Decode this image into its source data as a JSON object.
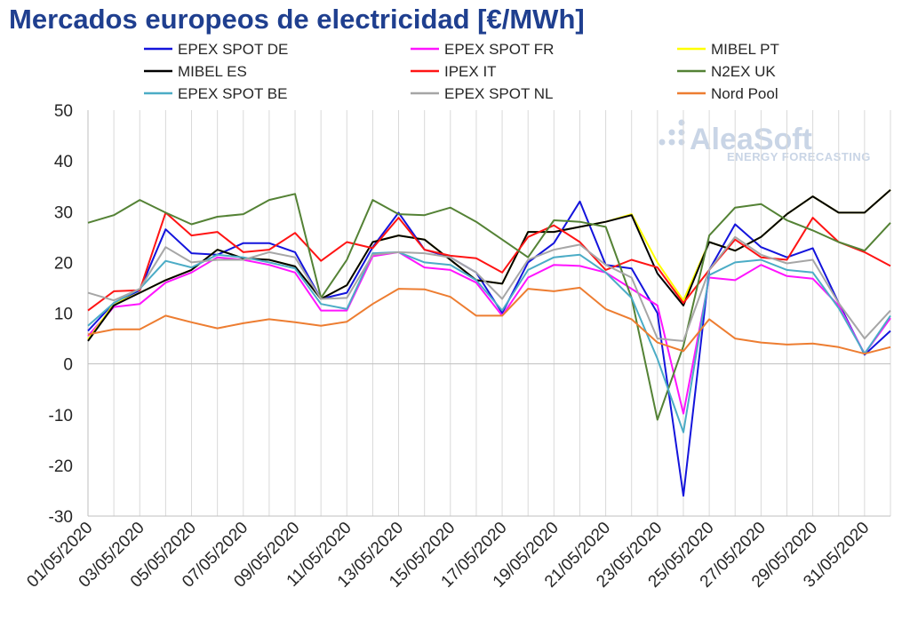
{
  "chart_data": {
    "type": "line",
    "title": "Mercados europeos de electricidad [€/MWh]",
    "xlabel": "",
    "ylabel": "",
    "ylim": [
      -30,
      50
    ],
    "yticks": [
      50,
      40,
      30,
      20,
      10,
      0,
      -10,
      -20,
      -30
    ],
    "x": [
      "01/05/2020",
      "02/05/2020",
      "03/05/2020",
      "04/05/2020",
      "05/05/2020",
      "06/05/2020",
      "07/05/2020",
      "08/05/2020",
      "09/05/2020",
      "10/05/2020",
      "11/05/2020",
      "12/05/2020",
      "13/05/2020",
      "14/05/2020",
      "15/05/2020",
      "16/05/2020",
      "17/05/2020",
      "18/05/2020",
      "19/05/2020",
      "20/05/2020",
      "21/05/2020",
      "22/05/2020",
      "23/05/2020",
      "24/05/2020",
      "25/05/2020",
      "26/05/2020",
      "27/05/2020",
      "28/05/2020",
      "29/05/2020",
      "30/05/2020",
      "31/05/2020",
      "01/06/2020"
    ],
    "xtick_labels": [
      "01/05/2020",
      "03/05/2020",
      "05/05/2020",
      "07/05/2020",
      "09/05/2020",
      "11/05/2020",
      "13/05/2020",
      "15/05/2020",
      "17/05/2020",
      "19/05/2020",
      "21/05/2020",
      "23/05/2020",
      "25/05/2020",
      "27/05/2020",
      "29/05/2020",
      "31/05/2020"
    ],
    "grid": "vertical",
    "legend_position": "top",
    "series": [
      {
        "name": "EPEX SPOT DE",
        "color": "#1414dc",
        "values": [
          6.5,
          12.0,
          14.5,
          26.5,
          21.8,
          21.5,
          23.8,
          23.8,
          22.0,
          12.8,
          14.0,
          23.0,
          29.8,
          22.5,
          21.0,
          18.0,
          10.0,
          20.0,
          23.8,
          32.0,
          19.5,
          18.8,
          10.0,
          -26.0,
          18.5,
          27.5,
          23.0,
          21.0,
          22.8,
          12.0,
          1.8,
          6.5
        ]
      },
      {
        "name": "EPEX SPOT FR",
        "color": "#ff14ff",
        "values": [
          5.5,
          11.2,
          11.8,
          16.0,
          18.0,
          21.0,
          20.5,
          19.5,
          18.0,
          10.5,
          10.5,
          21.2,
          22.0,
          19.0,
          18.5,
          16.0,
          9.5,
          17.0,
          19.5,
          19.3,
          18.0,
          14.8,
          11.5,
          -9.8,
          17.0,
          16.5,
          19.5,
          17.3,
          16.8,
          11.5,
          2.0,
          9.0
        ]
      },
      {
        "name": "MIBEL PT",
        "color": "#ffff00",
        "values": [
          4.8,
          11.8,
          14.0,
          16.5,
          18.5,
          22.5,
          20.8,
          20.5,
          19.2,
          12.8,
          15.5,
          24.0,
          25.3,
          24.5,
          20.5,
          16.5,
          15.8,
          26.0,
          26.0,
          27.0,
          28.0,
          29.5,
          20.0,
          12.5,
          24.0,
          22.3,
          25.0,
          29.5,
          33.0,
          29.8,
          29.8,
          34.3
        ]
      },
      {
        "name": "MIBEL ES",
        "color": "#000000",
        "values": [
          4.5,
          11.5,
          14.0,
          16.5,
          18.5,
          22.5,
          20.8,
          20.5,
          19.2,
          12.8,
          15.5,
          24.0,
          25.3,
          24.5,
          20.5,
          16.5,
          15.8,
          26.0,
          26.0,
          27.0,
          28.0,
          29.3,
          17.8,
          11.5,
          24.0,
          22.3,
          25.0,
          29.5,
          33.0,
          29.8,
          29.8,
          34.3
        ]
      },
      {
        "name": "IPEX IT",
        "color": "#ff1414",
        "values": [
          10.5,
          14.3,
          14.5,
          29.8,
          25.3,
          26.0,
          22.0,
          22.5,
          25.8,
          20.3,
          24.0,
          22.8,
          28.8,
          22.5,
          21.3,
          20.8,
          18.0,
          25.0,
          27.3,
          24.0,
          18.5,
          20.5,
          19.0,
          12.0,
          18.5,
          24.5,
          21.0,
          20.5,
          28.8,
          24.0,
          22.0,
          19.3
        ]
      },
      {
        "name": "N2EX UK",
        "color": "#548235",
        "values": [
          27.8,
          29.3,
          32.3,
          29.8,
          27.5,
          29.0,
          29.5,
          32.3,
          33.5,
          13.0,
          20.5,
          32.3,
          29.5,
          29.3,
          30.8,
          28.0,
          24.5,
          21.0,
          28.3,
          28.0,
          27.0,
          13.0,
          -11.0,
          3.5,
          25.3,
          30.8,
          31.5,
          28.3,
          26.3,
          24.0,
          22.3,
          27.8
        ]
      },
      {
        "name": "EPEX SPOT BE",
        "color": "#4bacc6",
        "values": [
          7.5,
          12.0,
          14.8,
          20.3,
          19.0,
          21.5,
          21.0,
          20.0,
          18.8,
          11.8,
          10.8,
          21.8,
          22.0,
          20.0,
          19.5,
          16.5,
          10.5,
          18.5,
          21.0,
          21.5,
          18.0,
          13.0,
          1.0,
          -13.5,
          17.5,
          20.0,
          20.5,
          18.5,
          18.0,
          11.0,
          2.0,
          9.5
        ]
      },
      {
        "name": "EPEX SPOT NL",
        "color": "#a6a6a6",
        "values": [
          14.0,
          12.5,
          14.8,
          23.0,
          20.0,
          20.5,
          20.5,
          22.0,
          21.0,
          12.8,
          13.0,
          21.5,
          22.0,
          21.8,
          21.0,
          18.0,
          12.8,
          20.5,
          22.5,
          23.5,
          19.5,
          17.0,
          5.0,
          4.5,
          18.5,
          25.0,
          21.5,
          19.8,
          20.5,
          12.0,
          5.0,
          10.5
        ]
      },
      {
        "name": "Nord Pool",
        "color": "#ed7d31",
        "values": [
          5.8,
          6.8,
          6.8,
          9.5,
          8.2,
          7.0,
          8.0,
          8.8,
          8.2,
          7.5,
          8.3,
          11.8,
          14.8,
          14.7,
          13.2,
          9.5,
          9.5,
          14.8,
          14.3,
          15.0,
          10.8,
          8.8,
          4.2,
          2.5,
          8.8,
          5.0,
          4.2,
          3.8,
          4.0,
          3.3,
          2.0,
          3.3
        ]
      }
    ]
  },
  "logo": {
    "main": "AleaSoft",
    "sub": "ENERGY FORECASTING"
  }
}
